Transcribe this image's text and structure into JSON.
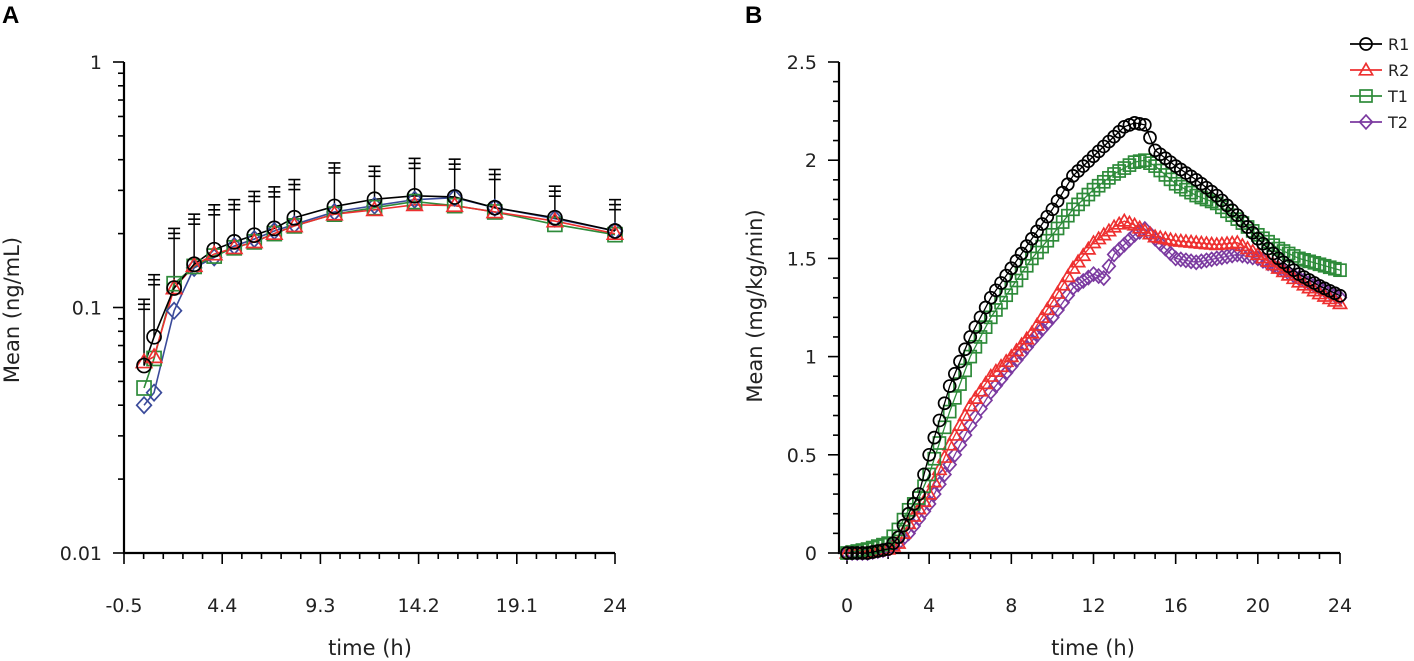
{
  "colors": {
    "R1": "#000000",
    "R2": "#ee3030",
    "T1": "#2e8b3a",
    "T2": "#7b3aa0",
    "errorbar": "#000000"
  },
  "chart_data": [
    {
      "panel": "A",
      "type": "line",
      "yscale": "log",
      "title": "",
      "xlabel": "time (h)",
      "ylabel": "Mean (ng/mL)",
      "xlim": [
        -0.5,
        24
      ],
      "ylim": [
        0.01,
        1
      ],
      "xticks": [
        -0.5,
        4.4,
        9.3,
        14.2,
        19.1,
        24
      ],
      "xtick_labels": [
        "-0.5",
        "4.4",
        "9.3",
        "14.2",
        "19.1",
        "24"
      ],
      "yticks": [
        0.01,
        0.1,
        1
      ],
      "ytick_labels": [
        "0.01",
        "0.1",
        "1"
      ],
      "x": [
        0.5,
        1,
        2,
        3,
        4,
        5,
        6,
        7,
        8,
        10,
        12,
        14,
        16,
        18,
        21,
        24
      ],
      "series": [
        {
          "name": "R1",
          "marker": "circle",
          "values": [
            0.058,
            0.076,
            0.12,
            0.15,
            0.172,
            0.185,
            0.197,
            0.21,
            0.232,
            0.258,
            0.276,
            0.285,
            0.282,
            0.255,
            0.232,
            0.205
          ],
          "errors": [
            0.05,
            0.06,
            0.09,
            0.09,
            0.09,
            0.09,
            0.1,
            0.1,
            0.1,
            0.13,
            0.1,
            0.12,
            0.12,
            0.11,
            0.08,
            0.07
          ]
        },
        {
          "name": "R2",
          "marker": "triangle",
          "values": [
            0.06,
            0.063,
            0.12,
            0.148,
            0.165,
            0.175,
            0.185,
            0.2,
            0.215,
            0.24,
            0.25,
            0.262,
            0.26,
            0.245,
            0.225,
            0.2
          ],
          "errors": []
        },
        {
          "name": "T1",
          "marker": "square",
          "values": [
            0.047,
            0.062,
            0.125,
            0.147,
            0.162,
            0.175,
            0.185,
            0.2,
            0.215,
            0.24,
            0.255,
            0.27,
            0.26,
            0.245,
            0.218,
            0.198
          ],
          "errors": []
        },
        {
          "name": "T2",
          "marker": "diamond",
          "values": [
            0.04,
            0.045,
            0.097,
            0.145,
            0.16,
            0.178,
            0.19,
            0.205,
            0.218,
            0.245,
            0.26,
            0.275,
            0.28,
            0.255,
            0.23,
            0.205
          ],
          "errors": []
        }
      ]
    },
    {
      "panel": "B",
      "type": "line",
      "title": "",
      "xlabel": "time (h)",
      "ylabel": "Mean (mg/kg/min)",
      "xlim": [
        0,
        24
      ],
      "ylim": [
        0,
        2.5
      ],
      "xticks": [
        0,
        4,
        8,
        12,
        16,
        20,
        24
      ],
      "xtick_labels": [
        "0",
        "4",
        "8",
        "12",
        "16",
        "20",
        "24"
      ],
      "yticks": [
        0,
        0.5,
        1,
        1.5,
        2,
        2.5
      ],
      "ytick_labels": [
        "0",
        "0.5",
        "1",
        "1.5",
        "2",
        "2.5"
      ],
      "legend": "top-right",
      "series": [
        {
          "name": "R1",
          "marker": "circle",
          "x": [
            0,
            1,
            2,
            2.5,
            3,
            3.5,
            4,
            5,
            6,
            7,
            8,
            9,
            10,
            11,
            12,
            13,
            13.5,
            14,
            14.5,
            15,
            16,
            17,
            18,
            19,
            20,
            21,
            22,
            23,
            24
          ],
          "y": [
            0,
            0,
            0.02,
            0.08,
            0.2,
            0.3,
            0.5,
            0.85,
            1.1,
            1.3,
            1.45,
            1.6,
            1.75,
            1.92,
            2.02,
            2.12,
            2.17,
            2.19,
            2.18,
            2.05,
            1.97,
            1.9,
            1.82,
            1.72,
            1.6,
            1.5,
            1.42,
            1.36,
            1.31
          ]
        },
        {
          "name": "R2",
          "marker": "triangle",
          "x": [
            0,
            1,
            2,
            2.5,
            3,
            4,
            5,
            6,
            7,
            8,
            9,
            10,
            11,
            12,
            13,
            13.5,
            14,
            15,
            16,
            17,
            18,
            19,
            20,
            21,
            22,
            23,
            24
          ],
          "y": [
            0,
            0,
            0.02,
            0.05,
            0.15,
            0.3,
            0.55,
            0.75,
            0.9,
            1.0,
            1.12,
            1.28,
            1.45,
            1.58,
            1.66,
            1.69,
            1.67,
            1.61,
            1.59,
            1.58,
            1.57,
            1.58,
            1.52,
            1.45,
            1.38,
            1.32,
            1.27
          ]
        },
        {
          "name": "T1",
          "marker": "square",
          "x": [
            0,
            1,
            2,
            2.5,
            3,
            3.5,
            4,
            5,
            6,
            7,
            8,
            9,
            10,
            11,
            12,
            13,
            14,
            14.5,
            15,
            16,
            17,
            18,
            19,
            20,
            21,
            22,
            23,
            24
          ],
          "y": [
            0,
            0.02,
            0.05,
            0.12,
            0.22,
            0.28,
            0.4,
            0.72,
            1.0,
            1.2,
            1.35,
            1.5,
            1.62,
            1.75,
            1.85,
            1.93,
            1.99,
            2.0,
            1.97,
            1.88,
            1.82,
            1.78,
            1.7,
            1.62,
            1.55,
            1.5,
            1.47,
            1.44
          ]
        },
        {
          "name": "T2",
          "marker": "diamond",
          "x": [
            0,
            1,
            2,
            2.5,
            3,
            4,
            5,
            6,
            7,
            8,
            9,
            10,
            11,
            12,
            12.5,
            13,
            14,
            14.5,
            15,
            16,
            17,
            18,
            19,
            20,
            21,
            22,
            23,
            24
          ],
          "y": [
            0,
            0,
            0.02,
            0.05,
            0.1,
            0.25,
            0.45,
            0.65,
            0.82,
            0.95,
            1.08,
            1.2,
            1.35,
            1.42,
            1.4,
            1.52,
            1.62,
            1.65,
            1.6,
            1.5,
            1.48,
            1.5,
            1.52,
            1.5,
            1.45,
            1.4,
            1.35,
            1.3
          ]
        }
      ]
    }
  ]
}
